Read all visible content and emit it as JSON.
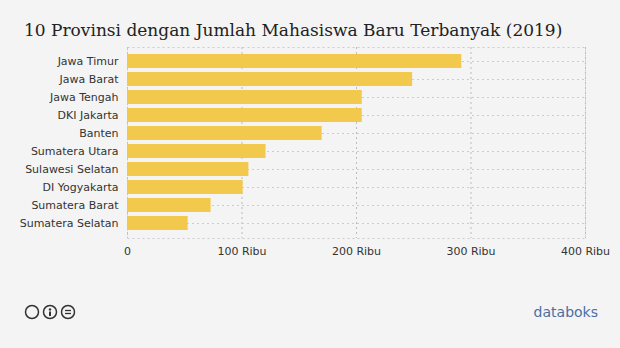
{
  "chart_data": {
    "type": "bar",
    "orientation": "horizontal",
    "title": "10 Provinsi dengan Jumlah Mahasiswa Baru Terbanyak (2019)",
    "categories": [
      "Jawa Timur",
      "Jawa Barat",
      "Jawa Tengah",
      "DKI Jakarta",
      "Banten",
      "Sumatera Utara",
      "Sulawesi Selatan",
      "DI Yogyakarta",
      "Sumatera Barat",
      "Sumatera Selatan"
    ],
    "values": [
      292,
      249,
      205,
      205,
      170,
      121,
      106,
      101,
      73,
      53
    ],
    "color": "#f2c94c",
    "xlim": [
      0,
      400
    ],
    "xticks": [
      0,
      {
        "value": 100,
        "label": "100 Ribu"
      },
      {
        "value": 200,
        "label": "200 Ribu"
      },
      {
        "value": 300,
        "label": "300 Ribu"
      },
      {
        "value": 400,
        "label": "400 Ribu"
      }
    ],
    "grid": true,
    "annotations": [
      "databoks"
    ]
  }
}
